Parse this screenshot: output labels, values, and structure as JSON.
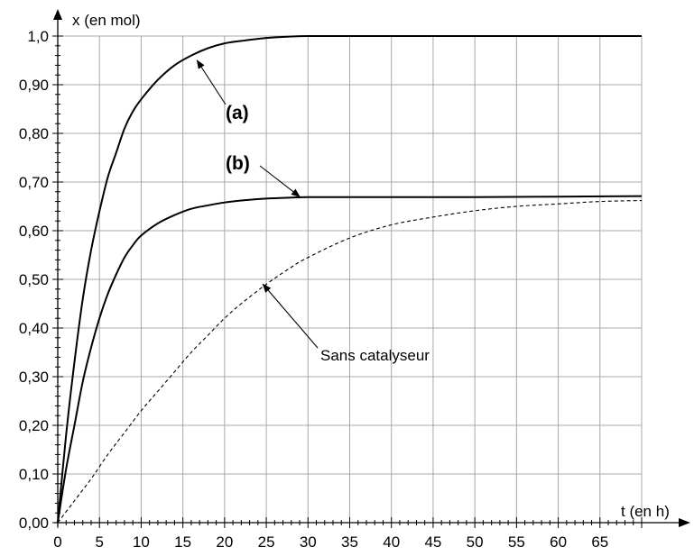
{
  "chart_data": {
    "type": "line",
    "title": "",
    "xlabel": "t (en h)",
    "ylabel": "x (en mol)",
    "xlim": [
      0,
      70
    ],
    "ylim": [
      0,
      1.0
    ],
    "grid": true,
    "x_ticks": [
      0,
      5,
      10,
      15,
      20,
      25,
      30,
      35,
      40,
      45,
      50,
      55,
      60,
      65
    ],
    "x_tick_labels": [
      "0",
      "5",
      "10",
      "15",
      "20",
      "25",
      "30",
      "35",
      "40",
      "45",
      "50",
      "55",
      "60",
      "65"
    ],
    "y_ticks": [
      0,
      0.1,
      0.2,
      0.3,
      0.4,
      0.5,
      0.6,
      0.7,
      0.8,
      0.9,
      1.0
    ],
    "y_tick_labels": [
      "0,00",
      "0,10",
      "0,20",
      "0,30",
      "0,40",
      "0,50",
      "0,60",
      "0,70",
      "0,80",
      "0,90",
      "1,0"
    ],
    "series": [
      {
        "name": "(a)",
        "style": "solid-bold",
        "x": [
          0,
          1,
          2,
          3,
          4,
          5,
          6,
          7,
          8,
          9,
          10,
          12,
          14,
          16,
          18,
          20,
          22,
          25,
          28,
          30,
          35,
          40,
          50,
          60,
          70
        ],
        "y": [
          0,
          0.18,
          0.33,
          0.46,
          0.56,
          0.64,
          0.71,
          0.76,
          0.81,
          0.845,
          0.87,
          0.91,
          0.94,
          0.96,
          0.975,
          0.985,
          0.99,
          0.996,
          0.999,
          1.0,
          1.0,
          1.0,
          1.0,
          1.0,
          1.0
        ]
      },
      {
        "name": "(b)",
        "style": "solid-bold",
        "x": [
          0,
          1,
          2,
          3,
          4,
          5,
          6,
          7,
          8,
          9,
          10,
          12,
          14,
          16,
          18,
          20,
          22,
          25,
          28,
          30,
          35,
          40,
          50,
          60,
          70
        ],
        "y": [
          0,
          0.11,
          0.2,
          0.29,
          0.36,
          0.42,
          0.47,
          0.51,
          0.545,
          0.57,
          0.59,
          0.615,
          0.632,
          0.645,
          0.652,
          0.658,
          0.662,
          0.666,
          0.668,
          0.669,
          0.669,
          0.669,
          0.669,
          0.67,
          0.671
        ]
      },
      {
        "name": "Sans catalyseur",
        "style": "dashed",
        "x": [
          0,
          2,
          4,
          6,
          8,
          10,
          12,
          14,
          16,
          18,
          20,
          22,
          25,
          28,
          30,
          35,
          40,
          45,
          50,
          55,
          60,
          65,
          70
        ],
        "y": [
          0,
          0.045,
          0.09,
          0.14,
          0.185,
          0.23,
          0.27,
          0.31,
          0.35,
          0.385,
          0.42,
          0.45,
          0.49,
          0.525,
          0.545,
          0.585,
          0.612,
          0.628,
          0.641,
          0.65,
          0.655,
          0.66,
          0.662
        ]
      }
    ],
    "annotations": [
      {
        "text": "(a)",
        "bold": true,
        "arrow_to": [
          16.7,
          0.95
        ]
      },
      {
        "text": "(b)",
        "bold": true,
        "arrow_to": [
          29,
          0.67
        ]
      },
      {
        "text": "Sans catalyseur",
        "bold": false,
        "arrow_to": [
          24.6,
          0.49
        ]
      }
    ]
  }
}
